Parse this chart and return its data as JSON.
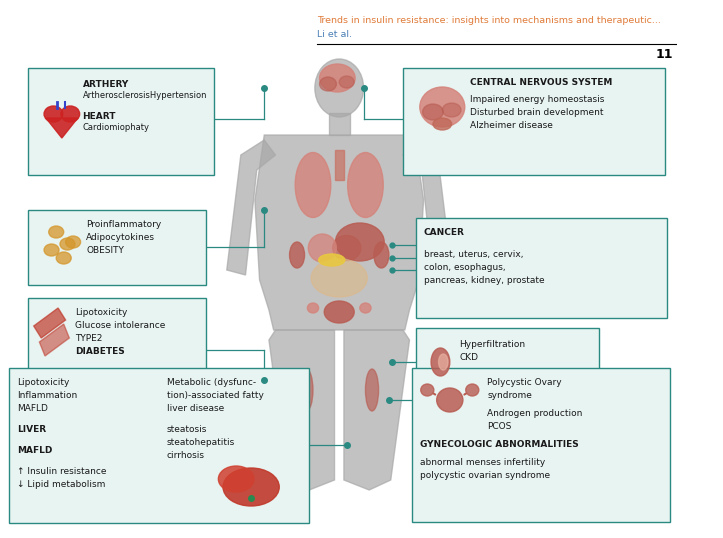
{
  "title_line1": "Trends in insulin resistance: insights into mechanisms and therapeutic...",
  "title_line2": "Li et al.",
  "page_number": "11",
  "title_color": "#e07b39",
  "title_line2_color": "#4a7fb5",
  "background_color": "#ffffff",
  "box_edge_color": "#2a8a82",
  "box_face_color": "#e8f4f2",
  "line_color": "#2a8a82",
  "dot_color": "#2a8a82",
  "body_color": "#a8a8a8",
  "organ_color": "#d4837a",
  "organ_dark": "#b85c52"
}
